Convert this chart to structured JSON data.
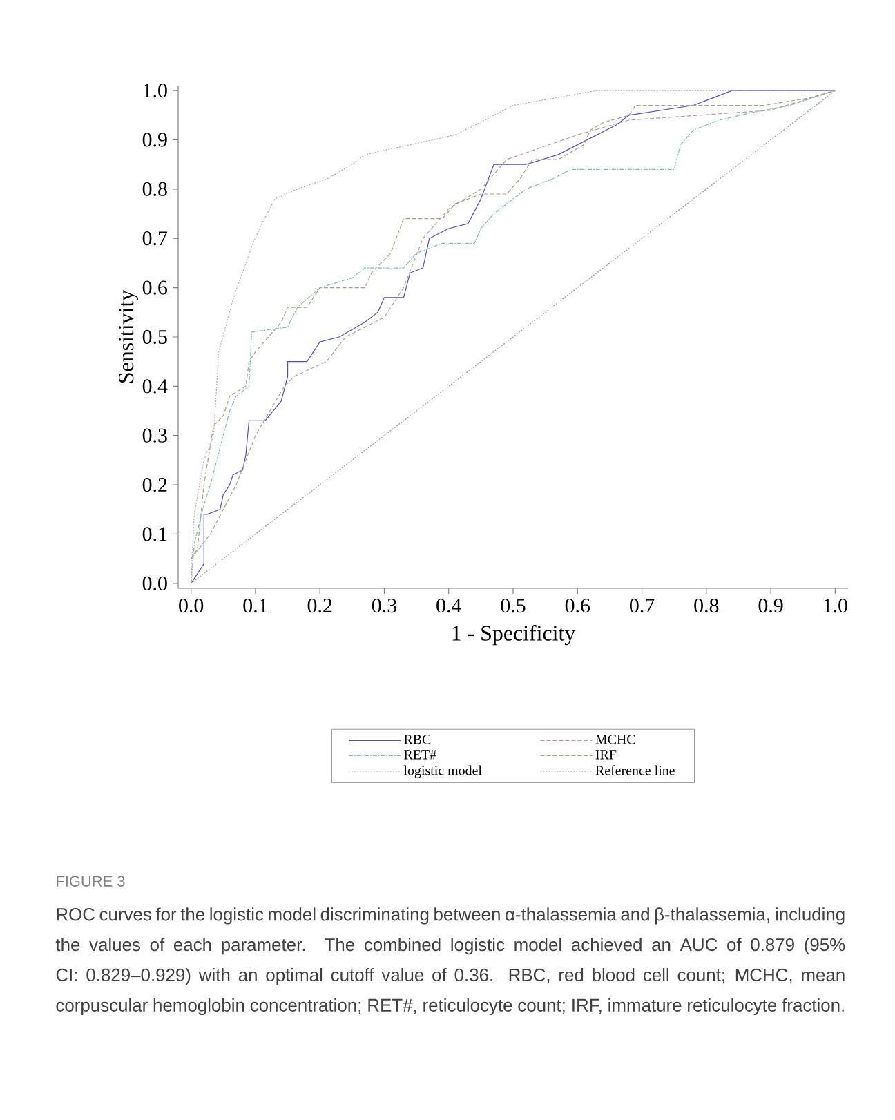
{
  "chart_data": {
    "type": "line",
    "xlabel": "1 - Specificity",
    "ylabel": "Sensitivity",
    "xlim": [
      -0.02,
      1.02
    ],
    "ylim": [
      -0.01,
      1.01
    ],
    "xticks": [
      {
        "value": 0,
        "label": "0.0"
      },
      {
        "value": 0.1,
        "label": "0.1"
      },
      {
        "value": 0.2,
        "label": "0.2"
      },
      {
        "value": 0.3,
        "label": "0.3"
      },
      {
        "value": 0.4,
        "label": "0.4"
      },
      {
        "value": 0.5,
        "label": "0.5"
      },
      {
        "value": 0.6,
        "label": "0.6"
      },
      {
        "value": 0.7,
        "label": "0.7"
      },
      {
        "value": 0.8,
        "label": "0.8"
      },
      {
        "value": 0.9,
        "label": "0.9"
      },
      {
        "value": 1,
        "label": "1.0"
      }
    ],
    "yticks": [
      {
        "value": 0,
        "label": "0.0"
      },
      {
        "value": 0.1,
        "label": "0.1"
      },
      {
        "value": 0.2,
        "label": "0.2"
      },
      {
        "value": 0.3,
        "label": "0.3"
      },
      {
        "value": 0.4,
        "label": "0.4"
      },
      {
        "value": 0.5,
        "label": "0.5"
      },
      {
        "value": 0.6,
        "label": "0.6"
      },
      {
        "value": 0.7,
        "label": "0.7"
      },
      {
        "value": 0.8,
        "label": "0.8"
      },
      {
        "value": 0.9,
        "label": "0.9"
      },
      {
        "value": 1,
        "label": "1.0"
      }
    ],
    "legend": "bottom",
    "marker": "none",
    "series": [
      {
        "name": "RBC",
        "color": "#5050c8",
        "line_style": "solid",
        "x": [
          0,
          0.01,
          0.01,
          0.02,
          0.02,
          0.025,
          0.045,
          0.05,
          0.06,
          0.065,
          0.08,
          0.085,
          0.09,
          0.115,
          0.14,
          0.15,
          0.15,
          0.18,
          0.2,
          0.23,
          0.27,
          0.29,
          0.3,
          0.33,
          0.34,
          0.36,
          0.37,
          0.4,
          0.43,
          0.45,
          0.47,
          0.52,
          0.57,
          0.63,
          0.66,
          0.68,
          0.78,
          0.8,
          0.84,
          1
        ],
        "values": [
          0,
          0.02,
          0.02,
          0.04,
          0.14,
          0.14,
          0.15,
          0.18,
          0.2,
          0.22,
          0.23,
          0.26,
          0.33,
          0.33,
          0.37,
          0.42,
          0.45,
          0.45,
          0.49,
          0.5,
          0.53,
          0.55,
          0.58,
          0.58,
          0.63,
          0.64,
          0.7,
          0.72,
          0.73,
          0.78,
          0.85,
          0.85,
          0.87,
          0.91,
          0.93,
          0.95,
          0.97,
          0.98,
          1,
          1
        ]
      },
      {
        "name": "MCHC",
        "color": "#c09898",
        "line_style": "dashed",
        "x": [
          0,
          0.03,
          0.07,
          0.1,
          0.145,
          0.16,
          0.21,
          0.24,
          0.3,
          0.33,
          0.36,
          0.4,
          0.45,
          0.49,
          0.6,
          0.68,
          0.9,
          1
        ],
        "values": [
          0.05,
          0.1,
          0.2,
          0.3,
          0.4,
          0.42,
          0.45,
          0.5,
          0.54,
          0.6,
          0.7,
          0.76,
          0.8,
          0.86,
          0.91,
          0.94,
          0.96,
          1
        ]
      },
      {
        "name": "RET#",
        "color": "#80bcbc",
        "line_style": "dashdot",
        "x": [
          0,
          0.005,
          0.02,
          0.03,
          0.04,
          0.05,
          0.06,
          0.07,
          0.09,
          0.094,
          0.15,
          0.165,
          0.2,
          0.25,
          0.27,
          0.33,
          0.35,
          0.39,
          0.44,
          0.45,
          0.47,
          0.51,
          0.52,
          0.56,
          0.59,
          0.75,
          0.76,
          0.78,
          0.82,
          0.87,
          0.93,
          1
        ],
        "values": [
          0,
          0.08,
          0.16,
          0.2,
          0.25,
          0.3,
          0.35,
          0.38,
          0.4,
          0.51,
          0.52,
          0.56,
          0.6,
          0.62,
          0.64,
          0.64,
          0.67,
          0.69,
          0.69,
          0.72,
          0.75,
          0.79,
          0.8,
          0.82,
          0.84,
          0.84,
          0.89,
          0.92,
          0.94,
          0.955,
          0.97,
          1
        ]
      },
      {
        "name": "IRF",
        "color": "#a8a080",
        "line_style": "dashed",
        "x": [
          0,
          0,
          0.01,
          0.02,
          0.035,
          0.05,
          0.06,
          0.085,
          0.09,
          0.1,
          0.12,
          0.14,
          0.15,
          0.18,
          0.2,
          0.27,
          0.28,
          0.31,
          0.33,
          0.39,
          0.41,
          0.45,
          0.49,
          0.51,
          0.53,
          0.57,
          0.61,
          0.62,
          0.64,
          0.68,
          0.69,
          0.89,
          0.96,
          1
        ],
        "values": [
          0,
          0.05,
          0.07,
          0.2,
          0.32,
          0.34,
          0.38,
          0.4,
          0.45,
          0.47,
          0.5,
          0.53,
          0.56,
          0.56,
          0.6,
          0.6,
          0.63,
          0.67,
          0.74,
          0.74,
          0.77,
          0.79,
          0.79,
          0.82,
          0.86,
          0.86,
          0.89,
          0.92,
          0.935,
          0.95,
          0.97,
          0.97,
          0.985,
          1
        ]
      },
      {
        "name": "logistic model",
        "color": "#c0a0d0",
        "line_style": "dotted",
        "x": [
          0,
          0.005,
          0.02,
          0.035,
          0.043,
          0.066,
          0.096,
          0.11,
          0.13,
          0.165,
          0.21,
          0.25,
          0.27,
          0.34,
          0.41,
          0.45,
          0.5,
          0.63,
          1
        ],
        "values": [
          0,
          0.14,
          0.25,
          0.3,
          0.47,
          0.58,
          0.69,
          0.73,
          0.78,
          0.8,
          0.82,
          0.85,
          0.87,
          0.89,
          0.91,
          0.936,
          0.97,
          1,
          1
        ]
      },
      {
        "name": "Reference line",
        "color": "#999999",
        "line_style": "dotted",
        "x": [
          0,
          1
        ],
        "values": [
          0,
          1
        ]
      }
    ],
    "annotations": [
      "FIGURE 3",
      "ROC curves for the logistic model discriminating between α-thalassemia and β-thalassemia, including the values of each parameter. The combined logistic model achieved an AUC of 0.879 (95% CI: 0.829–0.929) with an optimal cutoff value of 0.36. RBC, red blood cell count; MCHC, mean corpuscular hemoglobin concentration; RET#, reticulocyte count; IRF, immature reticulocyte fraction."
    ]
  }
}
